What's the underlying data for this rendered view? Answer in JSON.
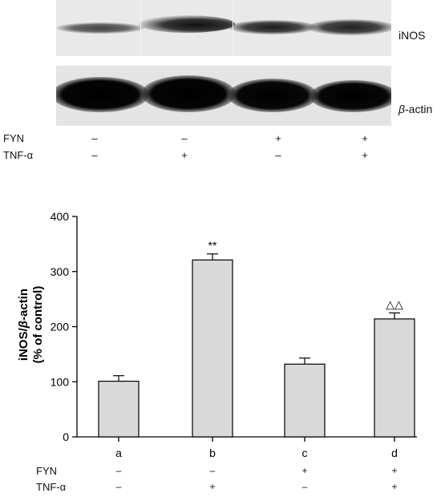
{
  "blot": {
    "top_label": "iNOS",
    "bottom_label_italic": "β",
    "bottom_label_rest": "-actin"
  },
  "conditions": {
    "row1_label": "FYN",
    "row2_label": "TNF-α",
    "row1_signs": [
      "–",
      "–",
      "+",
      "+"
    ],
    "row2_signs": [
      "–",
      "+",
      "–",
      "+"
    ]
  },
  "chart_data": {
    "type": "bar",
    "categories": [
      "a",
      "b",
      "c",
      "d"
    ],
    "values": [
      101,
      321,
      132,
      214
    ],
    "errors": [
      10,
      11,
      11,
      11
    ],
    "annotations": [
      "",
      "**",
      "",
      "△△"
    ],
    "ylabel_part1": "iNOS/",
    "ylabel_italic": "β",
    "ylabel_part2": "-actin",
    "ylabel_line2": "(% of control)",
    "ylim": [
      0,
      400
    ],
    "yticks": [
      0,
      100,
      200,
      300,
      400
    ],
    "bar_fill": "#d9d9d9",
    "grid": false
  }
}
